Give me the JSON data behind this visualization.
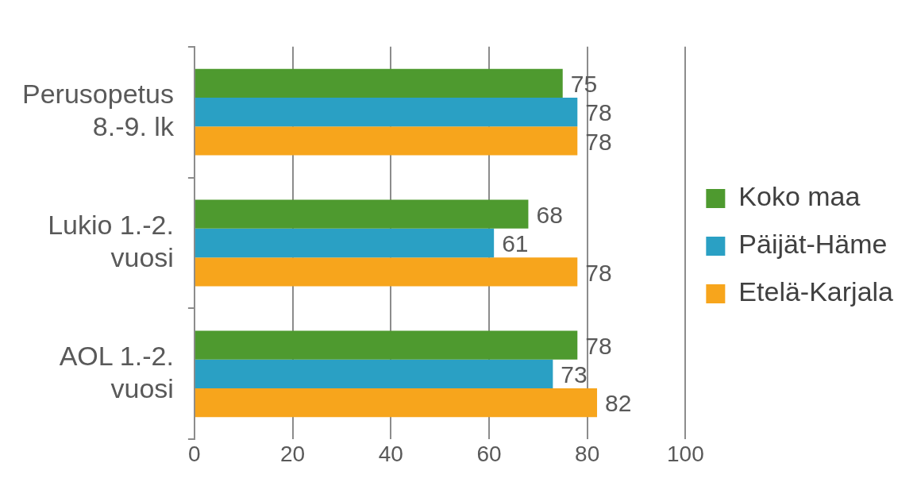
{
  "chart_data": {
    "type": "bar",
    "orientation": "horizontal",
    "categories": [
      "Perusopetus\n8.-9. lk",
      "Lukio 1.-2.\nvuosi",
      "AOL 1.-2.\nvuosi"
    ],
    "series": [
      {
        "name": "Koko maa",
        "color": "#4e9a2f",
        "values": [
          75,
          68,
          78
        ]
      },
      {
        "name": "Päijät-Häme",
        "color": "#2aa0c4",
        "values": [
          78,
          61,
          73
        ]
      },
      {
        "name": "Etelä-Karjala",
        "color": "#f7a51c",
        "values": [
          78,
          78,
          82
        ]
      }
    ],
    "xlim": [
      0,
      100
    ],
    "xticks": [
      0,
      20,
      40,
      60,
      80,
      100
    ],
    "grid": "x",
    "legend": "right",
    "data_labels": true
  }
}
